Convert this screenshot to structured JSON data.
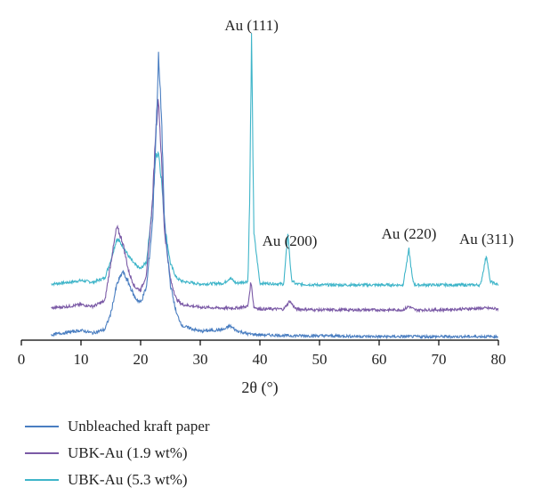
{
  "chart_data": {
    "type": "line",
    "xlabel": "2θ (°)",
    "ylabel": "",
    "xlim": [
      0,
      80
    ],
    "xticks": [
      0,
      10,
      20,
      30,
      40,
      50,
      60,
      70,
      80
    ],
    "grid": false,
    "legend_position": "bottom",
    "series": [
      {
        "name": "Unbleached kraft paper",
        "color": "#4a7ec1",
        "offset": 0,
        "x": [
          5,
          8,
          10,
          12,
          14,
          15,
          16,
          17,
          18,
          19,
          20,
          21,
          22,
          22.5,
          23,
          23.5,
          24,
          25,
          26,
          27,
          30,
          34,
          35,
          36,
          38,
          40,
          45,
          50,
          60,
          65,
          70,
          80
        ],
        "y": [
          4,
          7,
          9,
          6,
          10,
          28,
          60,
          75,
          62,
          46,
          40,
          58,
          130,
          215,
          315,
          250,
          130,
          60,
          28,
          14,
          8,
          10,
          14,
          9,
          5,
          4,
          3,
          3,
          2,
          2,
          2,
          2
        ]
      },
      {
        "name": "UBK-Au (1.9 wt%)",
        "color": "#7b5aa6",
        "offset": 30,
        "x": [
          5,
          8,
          10,
          12,
          14,
          15,
          16,
          17,
          18,
          19,
          20,
          21,
          22,
          22.5,
          23,
          23.5,
          24,
          25,
          26,
          27,
          30,
          34,
          36,
          38,
          38.5,
          39,
          40,
          44,
          45,
          46,
          50,
          60,
          64,
          65,
          66,
          70,
          78,
          80
        ],
        "y": [
          4,
          6,
          8,
          6,
          12,
          55,
          95,
          78,
          45,
          28,
          24,
          42,
          125,
          200,
          240,
          170,
          90,
          36,
          14,
          8,
          5,
          4,
          4,
          6,
          34,
          5,
          3,
          3,
          12,
          3,
          2,
          2,
          2,
          6,
          2,
          2,
          4,
          3
        ]
      },
      {
        "name": "UBK-Au (5.3 wt%)",
        "color": "#3fb5c9",
        "offset": 58,
        "x": [
          5,
          8,
          10,
          12,
          14,
          15,
          16,
          17,
          18,
          19,
          20,
          21,
          22,
          22.5,
          23,
          23.5,
          24,
          25,
          26,
          27,
          30,
          34,
          35,
          36,
          38,
          38.3,
          38.6,
          39,
          40,
          44,
          44.7,
          45.3,
          46,
          50,
          60,
          64,
          65,
          65.6,
          66,
          70,
          77,
          78,
          78.6,
          80
        ],
        "y": [
          3,
          5,
          7,
          5,
          10,
          30,
          54,
          46,
          34,
          25,
          20,
          28,
          95,
          145,
          152,
          120,
          70,
          26,
          10,
          6,
          3,
          4,
          10,
          4,
          6,
          100,
          278,
          60,
          4,
          3,
          60,
          8,
          3,
          2,
          2,
          2,
          42,
          8,
          2,
          2,
          2,
          36,
          6,
          2
        ]
      }
    ],
    "annotations": [
      {
        "text": "Au (111)",
        "x": 38.6
      },
      {
        "text": "Au (200)",
        "x": 45
      },
      {
        "text": "Au (220)",
        "x": 65
      },
      {
        "text": "Au (311)",
        "x": 78
      }
    ]
  }
}
